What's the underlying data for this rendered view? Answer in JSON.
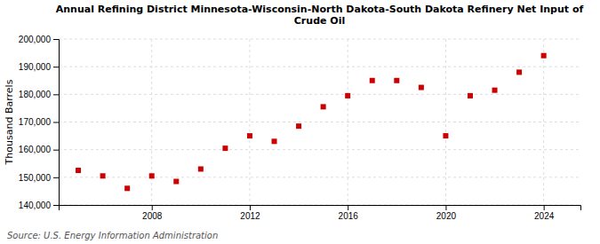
{
  "chart_data": {
    "type": "scatter",
    "title": "Annual Refining District Minnesota-Wisconsin-North Dakota-South Dakota Refinery Net Input of\nCrude Oil",
    "y_label": "Thousand Barrels",
    "annotations": [
      "Source: U.S. Energy Information Administration"
    ],
    "x": [
      2005,
      2006,
      2007,
      2008,
      2009,
      2010,
      2011,
      2012,
      2013,
      2014,
      2015,
      2016,
      2017,
      2018,
      2019,
      2020,
      2021,
      2022,
      2023,
      2024
    ],
    "values": [
      152500,
      150500,
      146000,
      150500,
      148500,
      153000,
      160500,
      165000,
      163000,
      168500,
      175500,
      179500,
      185000,
      185000,
      182500,
      165000,
      179500,
      181500,
      188000,
      194000
    ],
    "color": "#cc0000",
    "marker": "square",
    "xlim": [
      2004.2,
      2025.5
    ],
    "xticks": [
      2008,
      2012,
      2016,
      2020,
      2024
    ],
    "ylim": [
      140000,
      200000
    ],
    "yticks": [
      {
        "value": 140000,
        "label": "140,000"
      },
      {
        "value": 150000,
        "label": "150,000"
      },
      {
        "value": 160000,
        "label": "160,000"
      },
      {
        "value": 170000,
        "label": "170,000"
      },
      {
        "value": 180000,
        "label": "180,000"
      },
      {
        "value": 190000,
        "label": "190,000"
      },
      {
        "value": 200000,
        "label": "200,000"
      }
    ],
    "grid": true
  }
}
